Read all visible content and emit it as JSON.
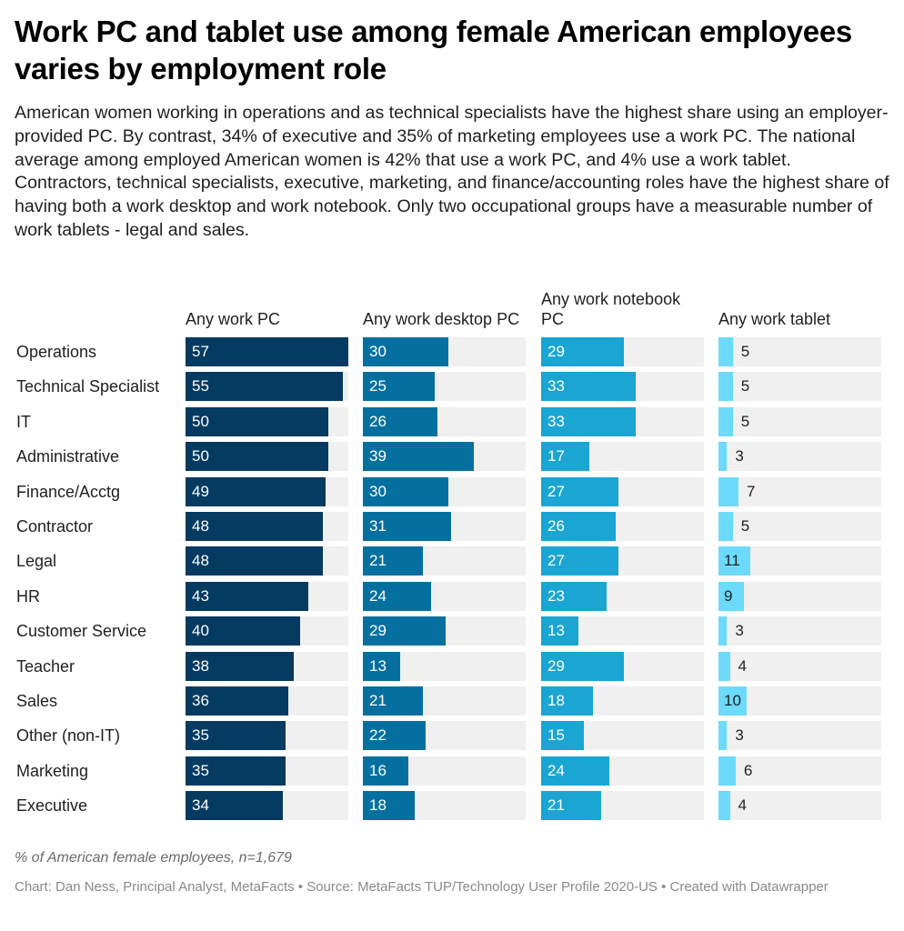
{
  "title": "Work PC and tablet use among female American employees varies by employment role",
  "subtitle": "American women working in operations and as technical specialists have the highest share using an employer-provided PC. By contrast, 34% of executive and 35% of marketing employees use a work PC. The national average among employed American women is 42% that use a work PC, and 4% use a work tablet. Contractors, technical specialists, executive, marketing, and finance/accounting roles have the highest share of having both a work desktop and work notebook. Only two occupational groups have a measurable number of work tablets - legal and sales.",
  "note": "% of American female employees, n=1,679",
  "source": "Chart: Dan Ness, Principal Analyst, MetaFacts • Source: MetaFacts TUP/Technology User Profile 2020-US • Created with Datawrapper",
  "chart_data": {
    "type": "bar",
    "categories": [
      "Operations",
      "Technical Specialist",
      "IT",
      "Administrative",
      "Finance/Acctg",
      "Contractor",
      "Legal",
      "HR",
      "Customer Service",
      "Teacher",
      "Sales",
      "Other (non-IT)",
      "Marketing",
      "Executive"
    ],
    "xlim": [
      0,
      57
    ],
    "series": [
      {
        "name": "Any work PC",
        "color": "#053a61",
        "values": [
          57,
          55,
          50,
          50,
          49,
          48,
          48,
          43,
          40,
          38,
          36,
          35,
          35,
          34
        ]
      },
      {
        "name": "Any work desktop PC",
        "color": "#05709f",
        "values": [
          30,
          25,
          26,
          39,
          30,
          31,
          21,
          24,
          29,
          13,
          21,
          22,
          16,
          18
        ]
      },
      {
        "name": "Any work notebook PC",
        "color": "#1aa5d3",
        "values": [
          29,
          33,
          33,
          17,
          27,
          26,
          27,
          23,
          13,
          29,
          18,
          15,
          24,
          21
        ]
      },
      {
        "name": "Any work tablet",
        "color": "#6cdafb",
        "values": [
          5,
          5,
          5,
          3,
          7,
          5,
          11,
          9,
          3,
          4,
          10,
          3,
          6,
          4
        ]
      }
    ]
  }
}
